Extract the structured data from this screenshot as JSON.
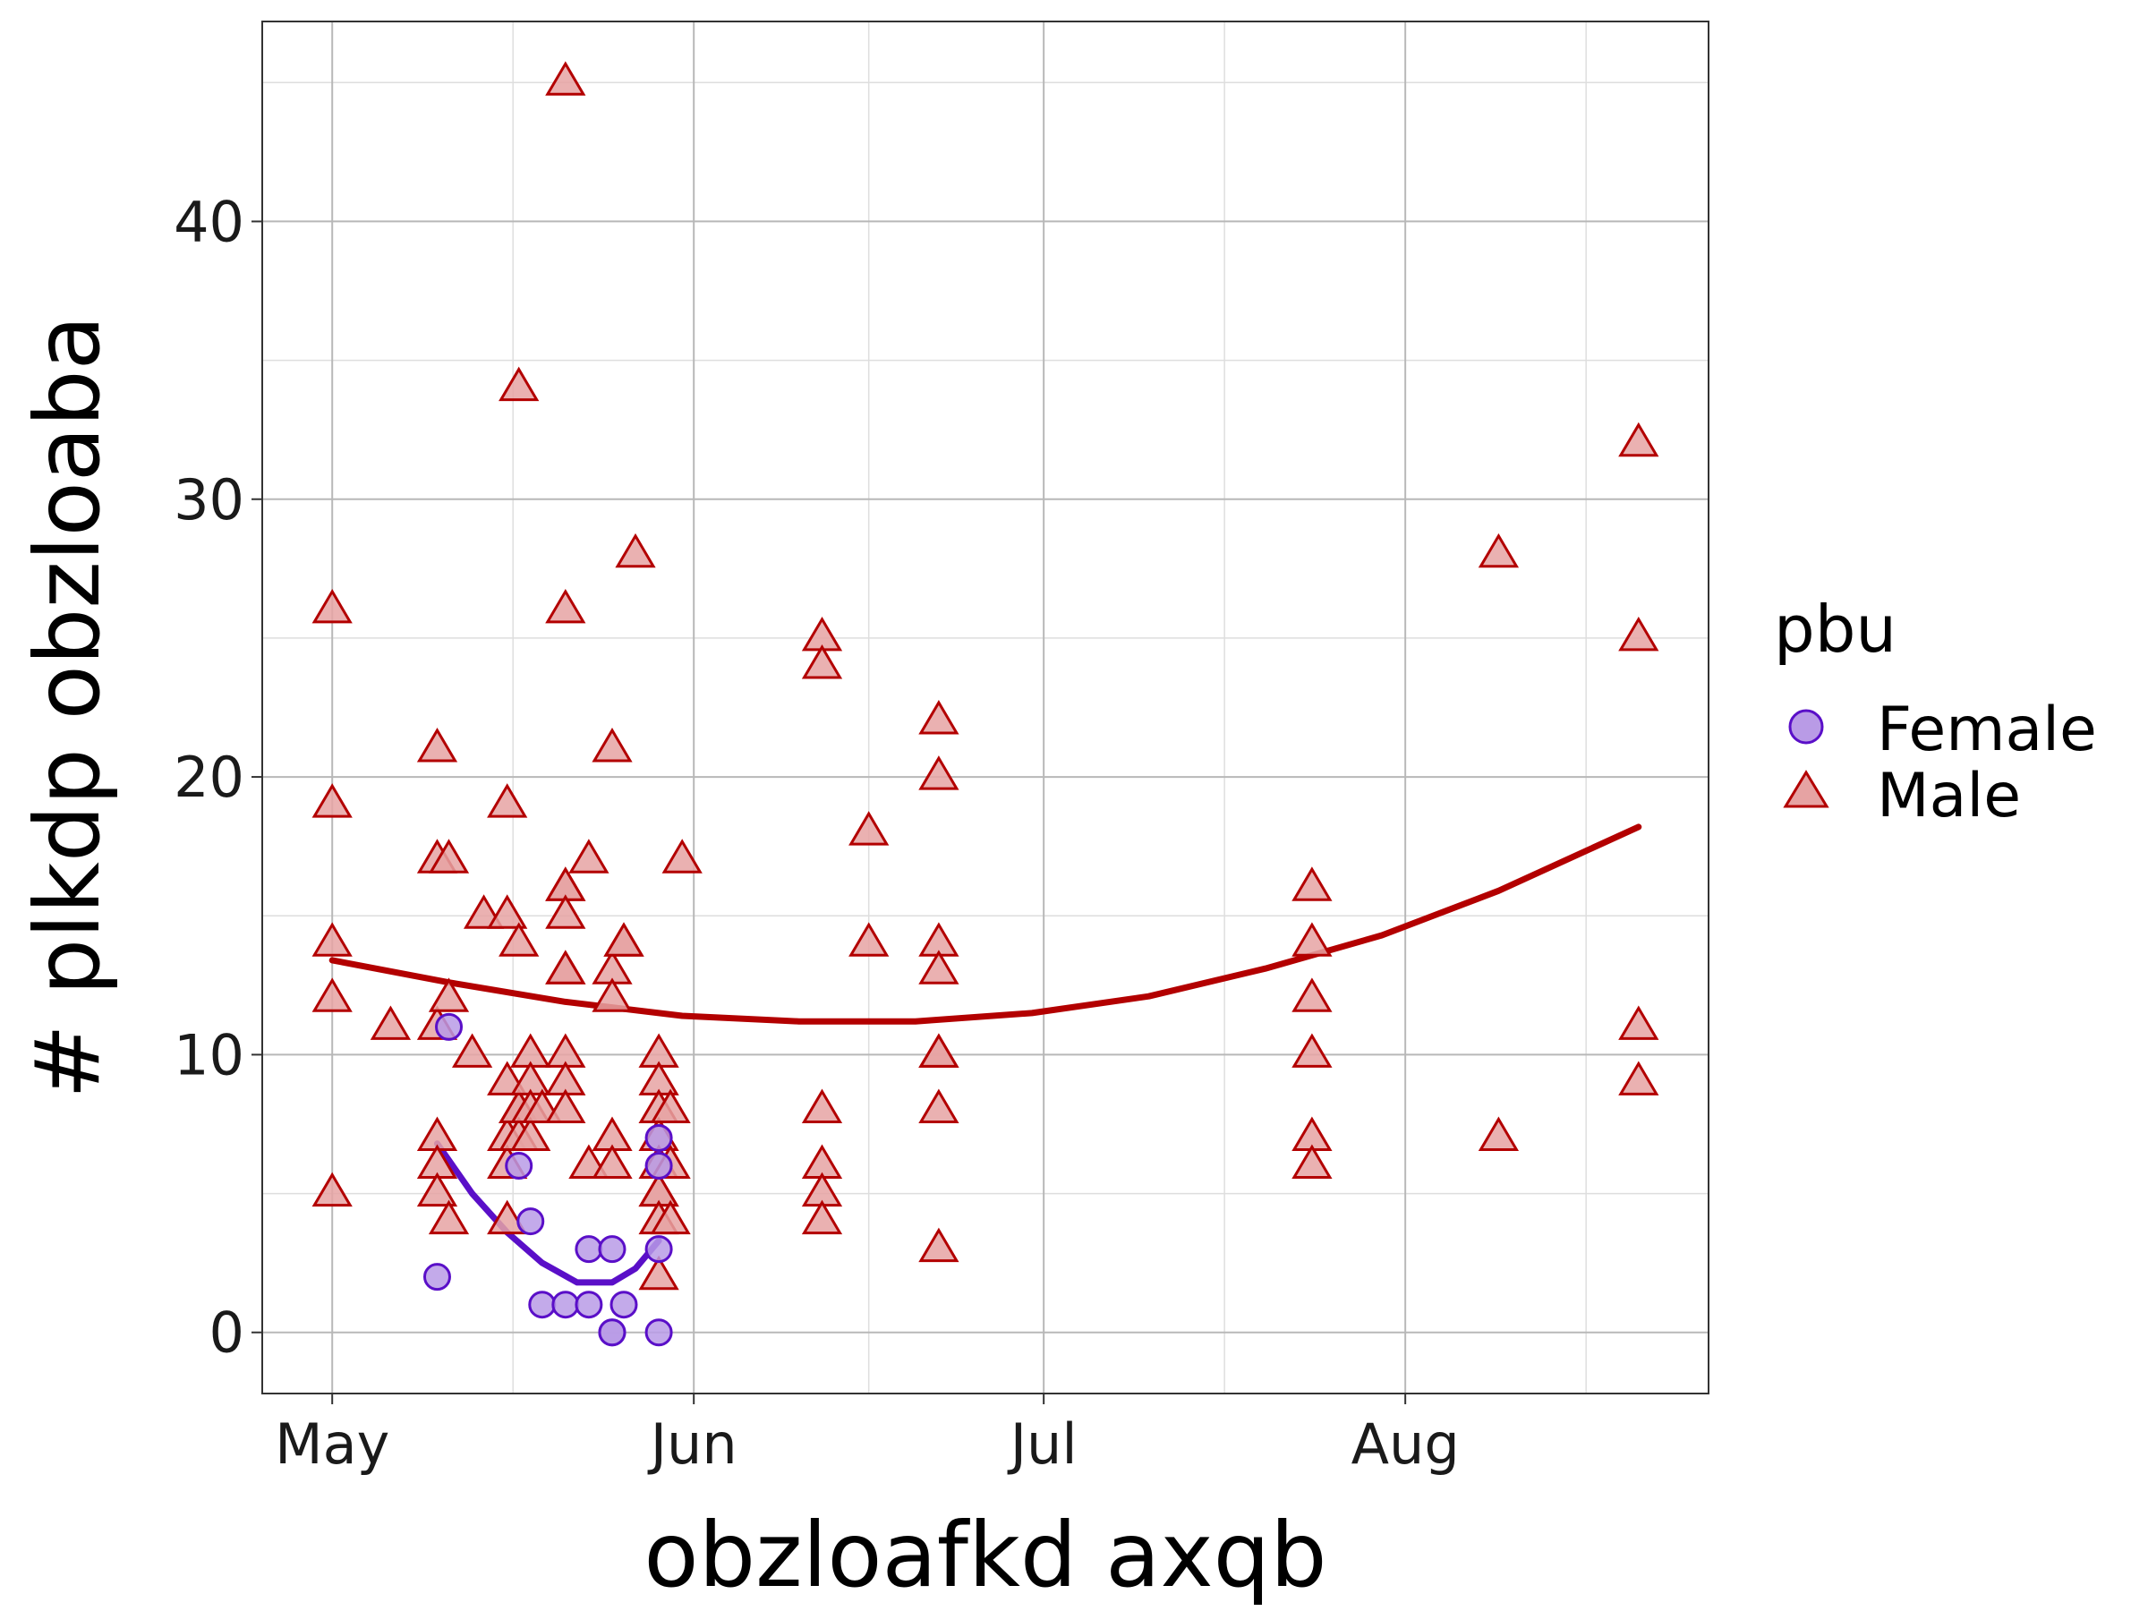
{
  "chart_data": {
    "type": "scatter",
    "xlabel": "obzloafkd axqb",
    "ylabel": "# plkdp obzloaba",
    "x_axis": {
      "type": "date",
      "ticks": [
        {
          "label": "May",
          "value": "2000-05-01"
        },
        {
          "label": "Jun",
          "value": "2000-06-01"
        },
        {
          "label": "Jul",
          "value": "2000-07-01"
        },
        {
          "label": "Aug",
          "value": "2000-08-01"
        }
      ],
      "range": [
        "2000-04-25",
        "2000-08-27"
      ]
    },
    "y_axis": {
      "ticks": [
        0,
        10,
        20,
        30,
        40
      ],
      "range": [
        -2.2,
        47.2
      ]
    },
    "grid": true,
    "legend": {
      "title": "pbu",
      "placement": "right",
      "entries": [
        "Female",
        "Male"
      ]
    },
    "series": [
      {
        "name": "Female",
        "marker": "circle",
        "color": "#5a0fc8",
        "fill": "#b99be6",
        "points": [
          [
            "2000-05-10",
            2
          ],
          [
            "2000-05-11",
            11
          ],
          [
            "2000-05-17",
            6
          ],
          [
            "2000-05-18",
            4
          ],
          [
            "2000-05-19",
            1
          ],
          [
            "2000-05-21",
            1
          ],
          [
            "2000-05-23",
            1
          ],
          [
            "2000-05-23",
            3
          ],
          [
            "2000-05-25",
            3
          ],
          [
            "2000-05-25",
            0
          ],
          [
            "2000-05-25",
            0
          ],
          [
            "2000-05-26",
            1
          ],
          [
            "2000-05-29",
            0
          ],
          [
            "2000-05-29",
            3
          ],
          [
            "2000-05-29",
            6
          ],
          [
            "2000-05-29",
            7
          ]
        ],
        "trend": [
          [
            "2000-05-10",
            6.8
          ],
          [
            "2000-05-13",
            5.0
          ],
          [
            "2000-05-16",
            3.6
          ],
          [
            "2000-05-19",
            2.5
          ],
          [
            "2000-05-22",
            1.8
          ],
          [
            "2000-05-25",
            1.8
          ],
          [
            "2000-05-27",
            2.3
          ],
          [
            "2000-05-29",
            3.3
          ]
        ]
      },
      {
        "name": "Male",
        "marker": "triangle",
        "color": "#b30000",
        "fill": "#e6a3a3",
        "points": [
          [
            "2000-05-01",
            26
          ],
          [
            "2000-05-01",
            19
          ],
          [
            "2000-05-01",
            14
          ],
          [
            "2000-05-01",
            12
          ],
          [
            "2000-05-01",
            5
          ],
          [
            "2000-05-06",
            11
          ],
          [
            "2000-05-10",
            21
          ],
          [
            "2000-05-10",
            17
          ],
          [
            "2000-05-10",
            11
          ],
          [
            "2000-05-10",
            7
          ],
          [
            "2000-05-10",
            6
          ],
          [
            "2000-05-10",
            5
          ],
          [
            "2000-05-11",
            17
          ],
          [
            "2000-05-11",
            12
          ],
          [
            "2000-05-11",
            4
          ],
          [
            "2000-05-13",
            10
          ],
          [
            "2000-05-14",
            15
          ],
          [
            "2000-05-16",
            19
          ],
          [
            "2000-05-16",
            15
          ],
          [
            "2000-05-16",
            9
          ],
          [
            "2000-05-16",
            7
          ],
          [
            "2000-05-16",
            6
          ],
          [
            "2000-05-16",
            4
          ],
          [
            "2000-05-17",
            34
          ],
          [
            "2000-05-17",
            14
          ],
          [
            "2000-05-17",
            8
          ],
          [
            "2000-05-17",
            8
          ],
          [
            "2000-05-17",
            7
          ],
          [
            "2000-05-18",
            10
          ],
          [
            "2000-05-18",
            9
          ],
          [
            "2000-05-18",
            8
          ],
          [
            "2000-05-18",
            7
          ],
          [
            "2000-05-19",
            8
          ],
          [
            "2000-05-21",
            45
          ],
          [
            "2000-05-21",
            26
          ],
          [
            "2000-05-21",
            16
          ],
          [
            "2000-05-21",
            16
          ],
          [
            "2000-05-21",
            15
          ],
          [
            "2000-05-21",
            13
          ],
          [
            "2000-05-21",
            13
          ],
          [
            "2000-05-21",
            10
          ],
          [
            "2000-05-21",
            9
          ],
          [
            "2000-05-21",
            8
          ],
          [
            "2000-05-23",
            17
          ],
          [
            "2000-05-23",
            6
          ],
          [
            "2000-05-25",
            21
          ],
          [
            "2000-05-25",
            13
          ],
          [
            "2000-05-25",
            12
          ],
          [
            "2000-05-25",
            7
          ],
          [
            "2000-05-25",
            6
          ],
          [
            "2000-05-26",
            14
          ],
          [
            "2000-05-26",
            14
          ],
          [
            "2000-05-27",
            28
          ],
          [
            "2000-05-29",
            10
          ],
          [
            "2000-05-29",
            9
          ],
          [
            "2000-05-29",
            8
          ],
          [
            "2000-05-29",
            7
          ],
          [
            "2000-05-29",
            6
          ],
          [
            "2000-05-29",
            5
          ],
          [
            "2000-05-29",
            5
          ],
          [
            "2000-05-29",
            4
          ],
          [
            "2000-05-29",
            2
          ],
          [
            "2000-05-30",
            8
          ],
          [
            "2000-05-30",
            6
          ],
          [
            "2000-05-30",
            4
          ],
          [
            "2000-05-31",
            17
          ],
          [
            "2000-06-12",
            25
          ],
          [
            "2000-06-12",
            24
          ],
          [
            "2000-06-12",
            8
          ],
          [
            "2000-06-12",
            6
          ],
          [
            "2000-06-12",
            5
          ],
          [
            "2000-06-12",
            4
          ],
          [
            "2000-06-16",
            18
          ],
          [
            "2000-06-16",
            14
          ],
          [
            "2000-06-22",
            22
          ],
          [
            "2000-06-22",
            20
          ],
          [
            "2000-06-22",
            14
          ],
          [
            "2000-06-22",
            13
          ],
          [
            "2000-06-22",
            10
          ],
          [
            "2000-06-22",
            10
          ],
          [
            "2000-06-22",
            8
          ],
          [
            "2000-06-22",
            3
          ],
          [
            "2000-07-24",
            16
          ],
          [
            "2000-07-24",
            14
          ],
          [
            "2000-07-24",
            12
          ],
          [
            "2000-07-24",
            10
          ],
          [
            "2000-07-24",
            7
          ],
          [
            "2000-07-24",
            6
          ],
          [
            "2000-08-09",
            28
          ],
          [
            "2000-08-09",
            7
          ],
          [
            "2000-08-21",
            32
          ],
          [
            "2000-08-21",
            25
          ],
          [
            "2000-08-21",
            11
          ],
          [
            "2000-08-21",
            9
          ]
        ],
        "trend": [
          [
            "2000-05-01",
            13.4
          ],
          [
            "2000-05-11",
            12.6
          ],
          [
            "2000-05-21",
            11.9
          ],
          [
            "2000-05-31",
            11.4
          ],
          [
            "2000-06-10",
            11.2
          ],
          [
            "2000-06-20",
            11.2
          ],
          [
            "2000-06-30",
            11.5
          ],
          [
            "2000-07-10",
            12.1
          ],
          [
            "2000-07-20",
            13.1
          ],
          [
            "2000-07-30",
            14.3
          ],
          [
            "2000-08-09",
            15.9
          ],
          [
            "2000-08-21",
            18.2
          ]
        ]
      }
    ]
  }
}
